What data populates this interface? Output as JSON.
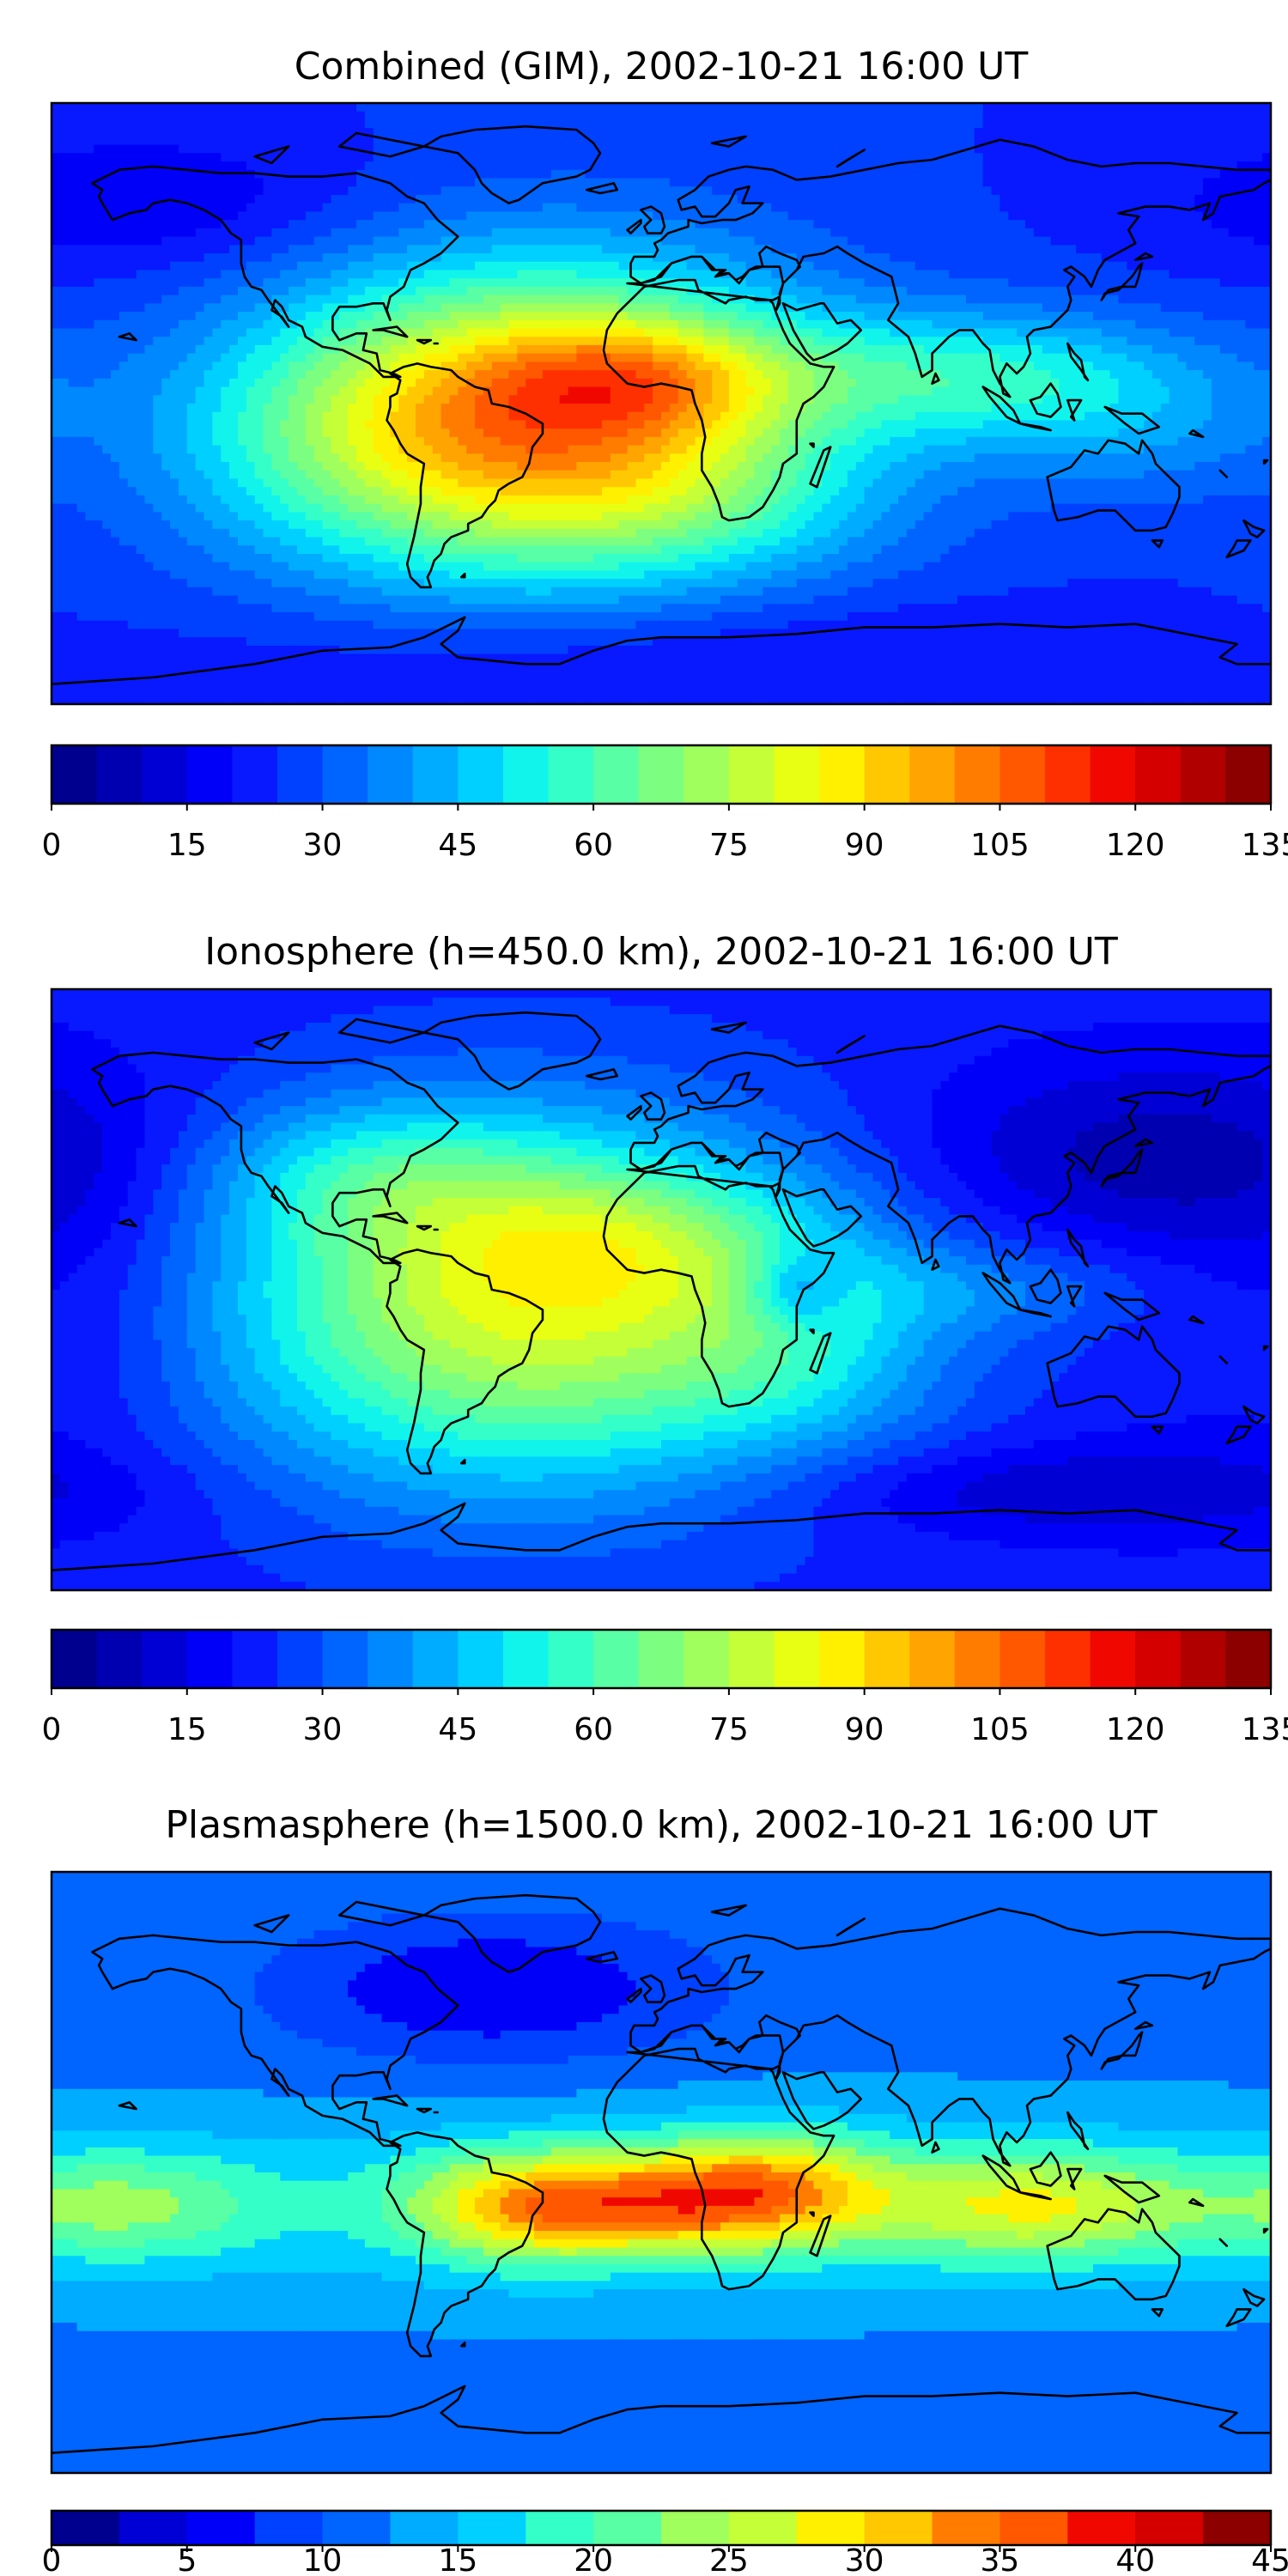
{
  "chart_data": [
    {
      "type": "heatmap",
      "title": "Combined (GIM), 2002-10-21 16:00 UT",
      "colorbar": {
        "min": 0,
        "max": 135,
        "step": 5,
        "ticks": [
          0,
          15,
          30,
          45,
          60,
          75,
          90,
          105,
          120,
          135
        ]
      },
      "field": {
        "background": 25,
        "blobs": [
          {
            "lon": -35,
            "lat": -5,
            "amp": 75,
            "slon": 55,
            "slat": 32
          },
          {
            "lon": -5,
            "lat": 8,
            "amp": 22,
            "slon": 30,
            "slat": 12
          },
          {
            "lon": 95,
            "lat": 8,
            "amp": 28,
            "slon": 45,
            "slat": 14
          },
          {
            "lon": 140,
            "lat": -10,
            "amp": 10,
            "slon": 30,
            "slat": 15
          },
          {
            "lon": -100,
            "lat": -10,
            "amp": 12,
            "slon": 40,
            "slat": 25
          },
          {
            "lon": 20,
            "lat": -30,
            "amp": 10,
            "slon": 40,
            "slat": 15
          },
          {
            "lon": -150,
            "lat": 60,
            "amp": -10,
            "slon": 45,
            "slat": 15
          },
          {
            "lon": 0,
            "lat": -75,
            "amp": -8,
            "slon": 90,
            "slat": 12
          }
        ]
      }
    },
    {
      "type": "heatmap",
      "title": "Ionosphere  (h=450.0 km), 2002-10-21 16:00 UT",
      "colorbar": {
        "min": 0,
        "max": 135,
        "step": 5,
        "ticks": [
          0,
          15,
          30,
          45,
          60,
          75,
          90,
          105,
          120,
          135
        ]
      },
      "field": {
        "background": 22,
        "blobs": [
          {
            "lon": -40,
            "lat": -5,
            "amp": 58,
            "slon": 65,
            "slat": 38
          },
          {
            "lon": -10,
            "lat": 15,
            "amp": 15,
            "slon": 40,
            "slat": 15
          },
          {
            "lon": -85,
            "lat": 35,
            "amp": 15,
            "slon": 35,
            "slat": 15
          },
          {
            "lon": 40,
            "lat": -20,
            "amp": 12,
            "slon": 30,
            "slat": 20
          },
          {
            "lon": 100,
            "lat": 0,
            "amp": 10,
            "slon": 40,
            "slat": 10
          },
          {
            "lon": 40,
            "lat": 0,
            "amp": -18,
            "slon": 10,
            "slat": 8
          },
          {
            "lon": 140,
            "lat": 40,
            "amp": -14,
            "slon": 50,
            "slat": 20
          },
          {
            "lon": -170,
            "lat": 0,
            "amp": -8,
            "slon": 30,
            "slat": 40
          },
          {
            "lon": 120,
            "lat": -60,
            "amp": -12,
            "slon": 60,
            "slat": 10
          }
        ]
      }
    },
    {
      "type": "heatmap",
      "title": "Plasmasphere (h=1500.0 km), 2002-10-21 16:00 UT",
      "colorbar": {
        "min": 0,
        "max": 45,
        "step": 2.5,
        "ticks": [
          0,
          5,
          10,
          15,
          20,
          25,
          30,
          35,
          40,
          45
        ]
      },
      "field": {
        "background": 12,
        "blobs": [
          {
            "lon": -40,
            "lat": -10,
            "amp": 14,
            "slon": 25,
            "slat": 12
          },
          {
            "lon": 30,
            "lat": -5,
            "amp": 16,
            "slon": 25,
            "slat": 12
          },
          {
            "lon": -5,
            "lat": -10,
            "amp": 10,
            "slon": 25,
            "slat": 10
          },
          {
            "lon": 110,
            "lat": -10,
            "amp": 12,
            "slon": 35,
            "slat": 12
          },
          {
            "lon": -160,
            "lat": -10,
            "amp": 8,
            "slon": 30,
            "slat": 12
          },
          {
            "lon": 0,
            "lat": -10,
            "amp": 5,
            "slon": 180,
            "slat": 18
          },
          {
            "lon": -50,
            "lat": 55,
            "amp": -7,
            "slon": 45,
            "slat": 15
          }
        ]
      }
    }
  ]
}
